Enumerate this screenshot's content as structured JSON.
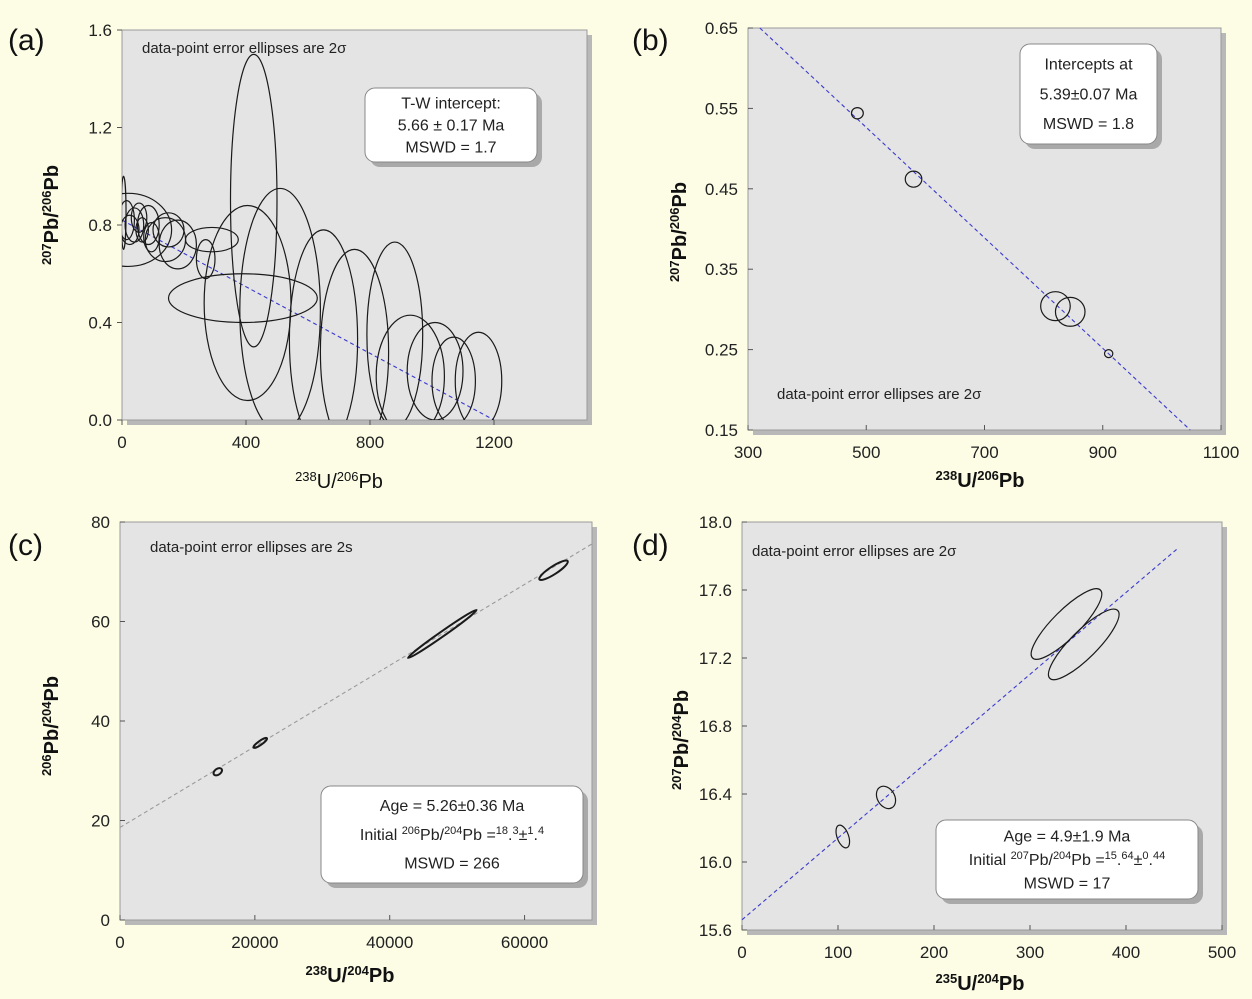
{
  "chart_data": [
    {
      "type": "scatter",
      "panel_letter": "(a)",
      "ylabel": "207Pb/206Pb",
      "xlabel": "238U/206Pb",
      "xlim": [
        0,
        1500
      ],
      "ylim": [
        0,
        1.6
      ],
      "xticks": [
        0,
        400,
        800,
        1200
      ],
      "yticks": [
        "0.0",
        "0.4",
        "0.8",
        "1.2",
        "1.6"
      ],
      "note": "data-point error ellipses are 2σ",
      "box_lines": [
        "T-W intercept:",
        "5.66 ± 0.17 Ma",
        "MSWD = 1.7"
      ],
      "regression_line": {
        "x": [
          0,
          1200
        ],
        "y": [
          0.82,
          0.0
        ]
      },
      "ellipses": [
        {
          "x": 5,
          "y": 0.85,
          "rx": 8,
          "ry": 0.15
        },
        {
          "x": 15,
          "y": 0.82,
          "rx": 25,
          "ry": 0.08
        },
        {
          "x": 25,
          "y": 0.78,
          "rx": 30,
          "ry": 0.06
        },
        {
          "x": 40,
          "y": 0.8,
          "rx": 30,
          "ry": 0.07
        },
        {
          "x": 55,
          "y": 0.83,
          "rx": 25,
          "ry": 0.06
        },
        {
          "x": 65,
          "y": 0.78,
          "rx": 20,
          "ry": 0.05
        },
        {
          "x": 85,
          "y": 0.8,
          "rx": 35,
          "ry": 0.08
        },
        {
          "x": 95,
          "y": 0.75,
          "rx": 25,
          "ry": 0.06
        },
        {
          "x": 140,
          "y": 0.74,
          "rx": 65,
          "ry": 0.09
        },
        {
          "x": 150,
          "y": 0.78,
          "rx": 50,
          "ry": 0.07
        },
        {
          "x": 180,
          "y": 0.72,
          "rx": 60,
          "ry": 0.1
        },
        {
          "x": 290,
          "y": 0.74,
          "rx": 85,
          "ry": 0.05
        },
        {
          "x": 270,
          "y": 0.66,
          "rx": 30,
          "ry": 0.08
        },
        {
          "x": 20,
          "y": 0.78,
          "rx": 140,
          "ry": 0.15
        },
        {
          "x": 390,
          "y": 0.5,
          "rx": 240,
          "ry": 0.1
        },
        {
          "x": 425,
          "y": 0.9,
          "rx": 75,
          "ry": 0.6
        },
        {
          "x": 405,
          "y": 0.48,
          "rx": 140,
          "ry": 0.4
        },
        {
          "x": 510,
          "y": 0.45,
          "rx": 130,
          "ry": 0.5
        },
        {
          "x": 650,
          "y": 0.33,
          "rx": 110,
          "ry": 0.45
        },
        {
          "x": 750,
          "y": 0.28,
          "rx": 110,
          "ry": 0.42
        },
        {
          "x": 880,
          "y": 0.35,
          "rx": 90,
          "ry": 0.38
        },
        {
          "x": 930,
          "y": 0.18,
          "rx": 110,
          "ry": 0.25
        },
        {
          "x": 1010,
          "y": 0.2,
          "rx": 90,
          "ry": 0.2
        },
        {
          "x": 1070,
          "y": 0.16,
          "rx": 70,
          "ry": 0.18
        },
        {
          "x": 1150,
          "y": 0.16,
          "rx": 75,
          "ry": 0.2
        }
      ]
    },
    {
      "type": "scatter",
      "panel_letter": "(b)",
      "ylabel": "207Pb/206Pb",
      "xlabel": "238U/206Pb",
      "xlim": [
        300,
        1100
      ],
      "ylim": [
        0.15,
        0.65
      ],
      "xticks": [
        300,
        500,
        700,
        900,
        1100
      ],
      "yticks": [
        "0.15",
        "0.25",
        "0.35",
        "0.45",
        "0.55",
        "0.65"
      ],
      "note": "data-point error ellipses are 2σ",
      "box_lines": [
        "Intercepts at",
        "5.39±0.07  Ma",
        "MSWD = 1.8"
      ],
      "regression_line": {
        "x": [
          320,
          1048
        ],
        "y": [
          0.65,
          0.15
        ]
      },
      "ellipses": [
        {
          "x": 485,
          "y": 0.544,
          "rx": 10,
          "ry": 0.007
        },
        {
          "x": 580,
          "y": 0.462,
          "rx": 14,
          "ry": 0.01
        },
        {
          "x": 820,
          "y": 0.304,
          "rx": 25,
          "ry": 0.018
        },
        {
          "x": 845,
          "y": 0.297,
          "rx": 25,
          "ry": 0.018
        },
        {
          "x": 910,
          "y": 0.245,
          "rx": 7,
          "ry": 0.005
        }
      ]
    },
    {
      "type": "scatter",
      "panel_letter": "(c)",
      "ylabel": "206Pb/204Pb",
      "xlabel": "238U/204Pb",
      "xlim": [
        0,
        70000
      ],
      "ylim": [
        0,
        80
      ],
      "xticks": [
        0,
        20000,
        40000,
        60000
      ],
      "yticks": [
        "0",
        "20",
        "40",
        "60",
        "80"
      ],
      "note": "data-point error ellipses are 2s",
      "box_lines": [
        "Age = 5.26±0.36  Ma",
        "Initial 206Pb/204Pb =18.3±1.4",
        "MSWD = 266"
      ],
      "regression_line": {
        "x": [
          0,
          70000
        ],
        "y": [
          18.6,
          75.6
        ]
      },
      "ellipses": [
        {
          "x": 14500,
          "y": 29.8,
          "rx": 700,
          "ry": 0.6,
          "angle": -35
        },
        {
          "x": 20800,
          "y": 35.6,
          "rx": 1200,
          "ry": 0.4,
          "angle": -35
        },
        {
          "x": 47800,
          "y": 57.5,
          "rx": 6200,
          "ry": 0.5,
          "angle": -35
        },
        {
          "x": 64300,
          "y": 70.3,
          "rx": 2500,
          "ry": 0.8,
          "angle": -33
        }
      ]
    },
    {
      "type": "scatter",
      "panel_letter": "(d)",
      "ylabel": "207Pb/204Pb",
      "xlabel": "235U/204Pb",
      "xlim": [
        0,
        500
      ],
      "ylim": [
        15.6,
        18.0
      ],
      "xticks": [
        0,
        100,
        200,
        300,
        400,
        500
      ],
      "yticks": [
        "15.6",
        "16.0",
        "16.4",
        "16.8",
        "17.2",
        "17.6",
        "18.0"
      ],
      "note": "data-point error ellipses are 2σ",
      "box_lines": [
        "Age = 4.9±1.9  Ma",
        "Initial 207Pb/204Pb =15.64±0.44",
        "MSWD = 17"
      ],
      "regression_line": {
        "x": [
          0,
          455
        ],
        "y": [
          15.66,
          17.85
        ]
      },
      "ellipses": [
        {
          "x": 105,
          "y": 16.15,
          "rx": 6,
          "ry": 0.07,
          "angle": -20
        },
        {
          "x": 150,
          "y": 16.38,
          "rx": 9,
          "ry": 0.07,
          "angle": -30
        },
        {
          "x": 338,
          "y": 17.4,
          "rx": 50,
          "ry": 0.08,
          "angle": -45
        },
        {
          "x": 356,
          "y": 17.28,
          "rx": 50,
          "ry": 0.08,
          "angle": -45
        }
      ]
    }
  ]
}
